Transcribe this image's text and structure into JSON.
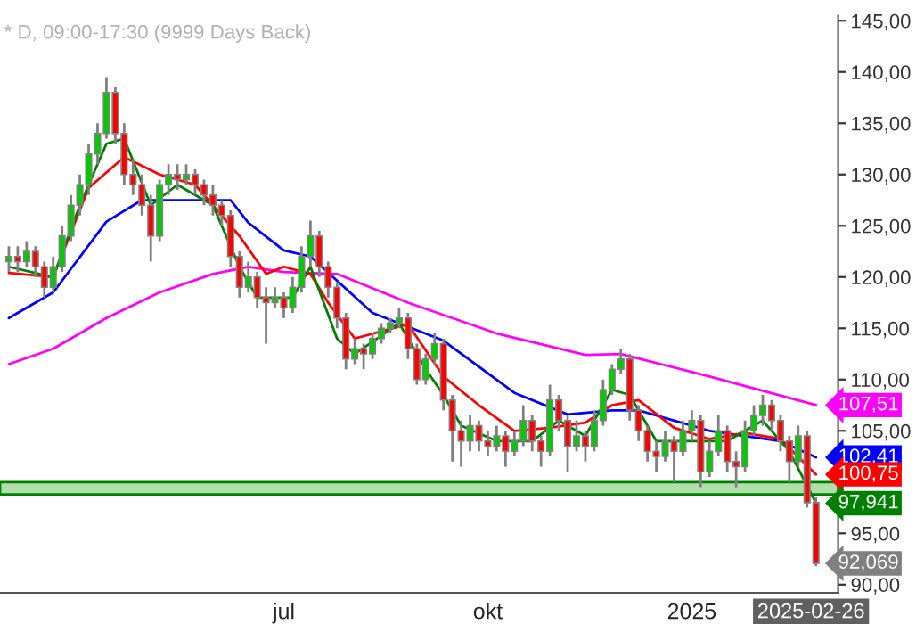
{
  "chart_data": {
    "type": "candlestick",
    "title": "* D, 09:00-17:30 (9999 Days Back)",
    "x": [
      "2024-02-28",
      "2024-03-03",
      "2024-03-07",
      "2024-03-11",
      "2024-03-15",
      "2024-03-19",
      "2024-03-23",
      "2024-03-27",
      "2024-03-31",
      "2024-04-04",
      "2024-04-08",
      "2024-04-12",
      "2024-04-16",
      "2024-04-20",
      "2024-04-24",
      "2024-04-28",
      "2024-05-02",
      "2024-05-06",
      "2024-05-10",
      "2024-05-14",
      "2024-05-18",
      "2024-05-22",
      "2024-05-26",
      "2024-05-30",
      "2024-06-03",
      "2024-06-07",
      "2024-06-11",
      "2024-06-15",
      "2024-06-19",
      "2024-06-23",
      "2024-06-27",
      "2024-07-01",
      "2024-07-05",
      "2024-07-09",
      "2024-07-13",
      "2024-07-17",
      "2024-07-21",
      "2024-07-25",
      "2024-07-29",
      "2024-08-02",
      "2024-08-06",
      "2024-08-10",
      "2024-08-14",
      "2024-08-18",
      "2024-08-22",
      "2024-08-26",
      "2024-08-30",
      "2024-09-03",
      "2024-09-07",
      "2024-09-11",
      "2024-09-15",
      "2024-09-19",
      "2024-09-23",
      "2024-09-27",
      "2024-10-01",
      "2024-10-05",
      "2024-10-09",
      "2024-10-13",
      "2024-10-17",
      "2024-10-21",
      "2024-10-25",
      "2024-10-29",
      "2024-11-02",
      "2024-11-06",
      "2024-11-10",
      "2024-11-14",
      "2024-11-18",
      "2024-11-22",
      "2024-11-26",
      "2024-11-30",
      "2024-12-04",
      "2024-12-08",
      "2024-12-12",
      "2024-12-16",
      "2024-12-20",
      "2024-12-24",
      "2024-12-28",
      "2025-01-01",
      "2025-01-05",
      "2025-01-09",
      "2025-01-13",
      "2025-01-17",
      "2025-01-21",
      "2025-01-25",
      "2025-01-29",
      "2025-02-02",
      "2025-02-06",
      "2025-02-10",
      "2025-02-14",
      "2025-02-18",
      "2025-02-22",
      "2025-02-26"
    ],
    "ohlc": [
      [
        121.5,
        123,
        120.5,
        122
      ],
      [
        122,
        123,
        120.5,
        121.5
      ],
      [
        121.5,
        123.5,
        121,
        122.5
      ],
      [
        122.5,
        123,
        120,
        121
      ],
      [
        121,
        121.5,
        118,
        119
      ],
      [
        119,
        122,
        118.5,
        121
      ],
      [
        121,
        125,
        120.5,
        124
      ],
      [
        124,
        128,
        123.5,
        127
      ],
      [
        127,
        130,
        126,
        129
      ],
      [
        129,
        133,
        128,
        132
      ],
      [
        132,
        135,
        131,
        134
      ],
      [
        134,
        139.5,
        133.5,
        138
      ],
      [
        138,
        138.5,
        133,
        134
      ],
      [
        134,
        135,
        129,
        130
      ],
      [
        130,
        131.5,
        128,
        129
      ],
      [
        129,
        130,
        126,
        127
      ],
      [
        127,
        128,
        121.5,
        124
      ],
      [
        124,
        129.5,
        123.5,
        129
      ],
      [
        129,
        131,
        128,
        130
      ],
      [
        130,
        131,
        128.5,
        129.5
      ],
      [
        129.5,
        131,
        129,
        130
      ],
      [
        130,
        130.5,
        128,
        129
      ],
      [
        129,
        129.5,
        127,
        128
      ],
      [
        128,
        129,
        126,
        127
      ],
      [
        127,
        127.5,
        125,
        126
      ],
      [
        126,
        126.5,
        121,
        122
      ],
      [
        122,
        122.5,
        118,
        119
      ],
      [
        119,
        121.5,
        118.5,
        120
      ],
      [
        120,
        120.5,
        117,
        118
      ],
      [
        118,
        119,
        113.5,
        117.5
      ],
      [
        117.5,
        119,
        117,
        118
      ],
      [
        118,
        118.5,
        116,
        117
      ],
      [
        117,
        120,
        116.5,
        119
      ],
      [
        119,
        123,
        118.5,
        122
      ],
      [
        122,
        125.5,
        121,
        124
      ],
      [
        124,
        124.5,
        120,
        121
      ],
      [
        121,
        121.5,
        118,
        119
      ],
      [
        119,
        119.5,
        115,
        116
      ],
      [
        116,
        116.5,
        111,
        112
      ],
      [
        112,
        114,
        111.5,
        113
      ],
      [
        113,
        113.5,
        111,
        112.5
      ],
      [
        112.5,
        114.5,
        112,
        114
      ],
      [
        114,
        115.5,
        113.5,
        115
      ],
      [
        115,
        116,
        114.5,
        115.5
      ],
      [
        115.5,
        117,
        115,
        116
      ],
      [
        116,
        116.5,
        112,
        113
      ],
      [
        113,
        113.5,
        109.5,
        110
      ],
      [
        110,
        112.5,
        109.5,
        112
      ],
      [
        112,
        114.5,
        111.5,
        113.5
      ],
      [
        113.5,
        114,
        107,
        108
      ],
      [
        108,
        108.5,
        102,
        105
      ],
      [
        105,
        106,
        101.5,
        104
      ],
      [
        104,
        106.5,
        103,
        105.5
      ],
      [
        105.5,
        106,
        103,
        104
      ],
      [
        104,
        105,
        102.5,
        103.5
      ],
      [
        103.5,
        105.5,
        103,
        104.5
      ],
      [
        104.5,
        105,
        101.5,
        103
      ],
      [
        103,
        105,
        102.5,
        104
      ],
      [
        104,
        107.5,
        103.5,
        106
      ],
      [
        106,
        106.5,
        103,
        104
      ],
      [
        104,
        104.5,
        101.5,
        103
      ],
      [
        103,
        109.5,
        102.5,
        108
      ],
      [
        108,
        108.5,
        105,
        106
      ],
      [
        106,
        106.5,
        101,
        103.5
      ],
      [
        103.5,
        106,
        103,
        104.5
      ],
      [
        104.5,
        105,
        102,
        103.5
      ],
      [
        103.5,
        107,
        103,
        106
      ],
      [
        106,
        110,
        105.5,
        109
      ],
      [
        109,
        111.5,
        108.5,
        111
      ],
      [
        111,
        113,
        110.5,
        112
      ],
      [
        112,
        112.5,
        106,
        107
      ],
      [
        107,
        107.5,
        104,
        105
      ],
      [
        105,
        105.5,
        102,
        103
      ],
      [
        103,
        104,
        101,
        102.5
      ],
      [
        102.5,
        105,
        102,
        104
      ],
      [
        104,
        104.5,
        100,
        103
      ],
      [
        103,
        106,
        102.5,
        105
      ],
      [
        105,
        107,
        104,
        106
      ],
      [
        106,
        106.5,
        99.5,
        101
      ],
      [
        101,
        104,
        100.5,
        103
      ],
      [
        103,
        106.5,
        102.5,
        105
      ],
      [
        105,
        105.5,
        101,
        102
      ],
      [
        102,
        103,
        99.5,
        101.5
      ],
      [
        101.5,
        106,
        101,
        105
      ],
      [
        105,
        107.5,
        104.5,
        106.5
      ],
      [
        106.5,
        108.5,
        105.5,
        107.5
      ],
      [
        107.5,
        108,
        105,
        106
      ],
      [
        106,
        106.5,
        103,
        104
      ],
      [
        104,
        104.5,
        100,
        102
      ],
      [
        102,
        105.5,
        101.5,
        104.5
      ],
      [
        104.5,
        105,
        97.5,
        98
      ],
      [
        98,
        98.5,
        91.8,
        92.07
      ]
    ],
    "colors": [
      "#00cc00",
      "#ff0000",
      "#00cc00",
      "#ff0000",
      "#ff0000",
      "#00cc00",
      "#00cc00",
      "#00cc00",
      "#00cc00",
      "#00cc00",
      "#00cc00",
      "#00cc00",
      "#ff0000",
      "#ff0000",
      "#ff0000",
      "#ff0000",
      "#ff0000",
      "#00cc00",
      "#00cc00",
      "#ff0000",
      "#00cc00",
      "#ff0000",
      "#ff0000",
      "#ff0000",
      "#ff0000",
      "#ff0000",
      "#ff0000",
      "#00cc00",
      "#ff0000",
      "#ff0000",
      "#00cc00",
      "#ff0000",
      "#00cc00",
      "#00cc00",
      "#00cc00",
      "#ff0000",
      "#ff0000",
      "#ff0000",
      "#ff0000",
      "#00cc00",
      "#ff0000",
      "#00cc00",
      "#00cc00",
      "#00cc00",
      "#00cc00",
      "#ff0000",
      "#ff0000",
      "#00cc00",
      "#00cc00",
      "#ff0000",
      "#ff0000",
      "#ff0000",
      "#00cc00",
      "#ff0000",
      "#ff0000",
      "#00cc00",
      "#ff0000",
      "#00cc00",
      "#00cc00",
      "#ff0000",
      "#ff0000",
      "#00cc00",
      "#ff0000",
      "#ff0000",
      "#00cc00",
      "#ff0000",
      "#00cc00",
      "#00cc00",
      "#00cc00",
      "#00cc00",
      "#ff0000",
      "#ff0000",
      "#ff0000",
      "#ff0000",
      "#00cc00",
      "#ff0000",
      "#00cc00",
      "#00cc00",
      "#ff0000",
      "#00cc00",
      "#00cc00",
      "#ff0000",
      "#ff0000",
      "#00cc00",
      "#00cc00",
      "#00cc00",
      "#ff0000",
      "#ff0000",
      "#ff0000",
      "#00cc00",
      "#ff0000",
      "#ff0000"
    ],
    "series": [
      {
        "type": "line",
        "color": "#ff00ff",
        "x": [
          "2024-02-28",
          "2024-03-19",
          "2024-04-12",
          "2024-05-06",
          "2024-05-30",
          "2024-06-15",
          "2024-07-01",
          "2024-07-25",
          "2024-08-26",
          "2024-10-05",
          "2024-11-14",
          "2024-11-30",
          "2025-01-09",
          "2025-02-26"
        ],
        "values": [
          111.5,
          113,
          116,
          118.5,
          120.3,
          121,
          120.5,
          120.3,
          117.5,
          114.5,
          112.4,
          112.5,
          110.3,
          107.51
        ]
      },
      {
        "type": "line",
        "color": "#0000ff",
        "x": [
          "2024-02-28",
          "2024-03-19",
          "2024-04-12",
          "2024-04-28",
          "2024-05-14",
          "2024-06-07",
          "2024-06-15",
          "2024-07-01",
          "2024-07-13",
          "2024-08-10",
          "2024-09-11",
          "2024-10-13",
          "2024-11-06",
          "2024-11-26",
          "2024-12-08",
          "2025-01-09",
          "2025-02-10",
          "2025-02-26"
        ],
        "values": [
          116,
          118.5,
          125.4,
          127.5,
          127.5,
          127.5,
          125.3,
          122.6,
          122,
          116.5,
          113.8,
          108.7,
          106.6,
          107,
          107,
          105,
          104,
          102.41
        ]
      },
      {
        "type": "line",
        "color": "#ff0000",
        "x": [
          "2024-02-28",
          "2024-03-19",
          "2024-04-04",
          "2024-04-20",
          "2024-05-06",
          "2024-05-22",
          "2024-06-11",
          "2024-06-23",
          "2024-07-01",
          "2024-07-13",
          "2024-07-21",
          "2024-08-02",
          "2024-08-26",
          "2024-09-11",
          "2024-09-27",
          "2024-10-13",
          "2024-10-29",
          "2024-11-14",
          "2024-11-26",
          "2024-12-08",
          "2024-12-24",
          "2025-01-09",
          "2025-01-25",
          "2025-02-10",
          "2025-02-26"
        ],
        "values": [
          120.4,
          120,
          128.7,
          131.7,
          130,
          129,
          124,
          120.3,
          121,
          120.3,
          117.5,
          114,
          115.4,
          110.3,
          107.5,
          105,
          105.3,
          105.8,
          107.5,
          108,
          105.3,
          104.2,
          104.8,
          104.2,
          100.75
        ]
      },
      {
        "type": "line",
        "color": "#008000",
        "x": [
          "2024-02-28",
          "2024-03-19",
          "2024-03-31",
          "2024-04-12",
          "2024-04-20",
          "2024-05-02",
          "2024-05-14",
          "2024-05-30",
          "2024-06-11",
          "2024-06-19",
          "2024-07-05",
          "2024-07-13",
          "2024-07-25",
          "2024-08-02",
          "2024-08-22",
          "2024-09-03",
          "2024-09-11",
          "2024-09-19",
          "2024-10-05",
          "2024-10-21",
          "2024-11-02",
          "2024-11-14",
          "2024-11-26",
          "2024-12-04",
          "2024-12-16",
          "2025-01-01",
          "2025-01-17",
          "2025-02-02",
          "2025-02-14",
          "2025-02-26"
        ],
        "values": [
          121,
          120,
          127,
          133,
          133.5,
          127,
          129,
          127,
          121,
          118,
          118,
          121,
          114,
          112.5,
          115.5,
          111,
          108.5,
          105.5,
          104,
          104,
          106,
          104.5,
          109,
          108.5,
          104,
          104,
          104,
          106,
          103,
          97.94
        ]
      }
    ],
    "bands": [
      {
        "axis": "y",
        "from": 98.8,
        "to": 100,
        "color": "#b0e0a8"
      }
    ],
    "annotations": [
      {
        "text": "107,51",
        "x": "2025-02-26",
        "y": 107.51
      },
      {
        "text": "102,41",
        "x": "2025-02-26",
        "y": 102.41
      },
      {
        "text": "100,75",
        "x": "2025-02-26",
        "y": 100.75
      },
      {
        "text": "97,941",
        "x": "2025-02-26",
        "y": 97.94
      },
      {
        "text": "92,069",
        "x": "2025-02-26",
        "y": 92.07
      },
      "2025-02-26"
    ],
    "xlim": [
      "2024-02-24",
      "2025-03-08"
    ],
    "xticks": [
      {
        "value": "2024-07-01",
        "label": "jul"
      },
      {
        "value": "2024-10-01",
        "label": "okt"
      },
      {
        "value": "2025-01-01",
        "label": "2025"
      }
    ],
    "ylim": [
      89.2,
      145.5
    ],
    "yticks": [
      {
        "value": 90,
        "label": "90,00"
      },
      {
        "value": 95,
        "label": "95,00"
      },
      {
        "value": 100,
        "label": null
      },
      {
        "value": 105,
        "label": "105,00"
      },
      {
        "value": 110,
        "label": "110,00"
      },
      {
        "value": 115,
        "label": "115,00"
      },
      {
        "value": 120,
        "label": "120,00"
      },
      {
        "value": 125,
        "label": "125,00"
      },
      {
        "value": 130,
        "label": "130,00"
      },
      {
        "value": 135,
        "label": "135,00"
      },
      {
        "value": 140,
        "label": "140,00"
      },
      {
        "value": 145,
        "label": "145,00"
      }
    ],
    "grid": false,
    "legend": false
  }
}
